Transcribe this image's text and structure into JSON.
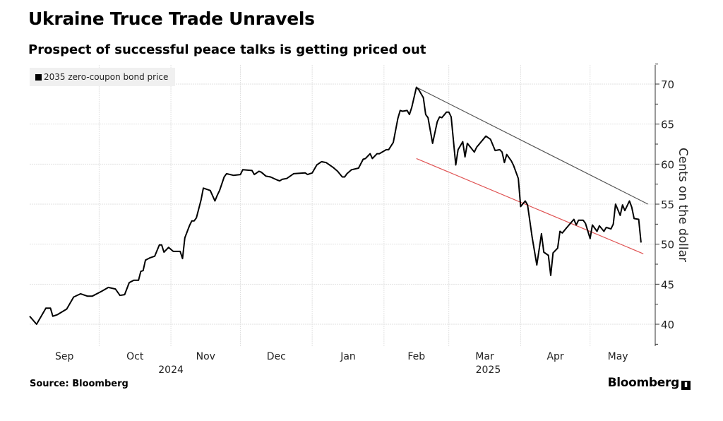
{
  "header": {
    "title": "Ukraine Truce Trade Unravels",
    "subtitle": "Prospect of successful peace talks is getting priced out"
  },
  "footer": {
    "source": "Source: Bloomberg",
    "brand": "Bloomberg"
  },
  "chart_data": {
    "type": "line",
    "title": "Ukraine Truce Trade Unravels",
    "subtitle": "Prospect of successful peace talks is getting priced out",
    "xlabel": "",
    "ylabel": "Cents on the dollar",
    "x_unit": "days since 2024-09-01",
    "xlim": [
      0,
      270
    ],
    "ylim": [
      37,
      72.5
    ],
    "yticks": [
      40,
      45,
      50,
      55,
      60,
      65,
      70
    ],
    "xticks": [
      {
        "label": "Sep",
        "day": 15
      },
      {
        "label": "Oct",
        "day": 45.5
      },
      {
        "label": "Nov",
        "day": 76
      },
      {
        "label": "Dec",
        "day": 106.5
      },
      {
        "label": "Jan",
        "day": 137.5
      },
      {
        "label": "Feb",
        "day": 167
      },
      {
        "label": "Mar",
        "day": 196.5
      },
      {
        "label": "Apr",
        "day": 227
      },
      {
        "label": "May",
        "day": 254
      }
    ],
    "month_boundaries": [
      30,
      61,
      91,
      122,
      153,
      181,
      212,
      242
    ],
    "year_labels": [
      {
        "label": "2024",
        "day": 61
      },
      {
        "label": "2025",
        "day": 198
      }
    ],
    "grid": true,
    "legend": {
      "position": "top-left",
      "entries": [
        "2035 zero-coupon bond price"
      ]
    },
    "series": [
      {
        "name": "2035 zero-coupon bond price",
        "color": "#000000",
        "points": [
          [
            0,
            41.0
          ],
          [
            3,
            40.0
          ],
          [
            7,
            42.0
          ],
          [
            9,
            42.0
          ],
          [
            10,
            41.0
          ],
          [
            12,
            41.2
          ],
          [
            16,
            41.9
          ],
          [
            19,
            43.4
          ],
          [
            22,
            43.8
          ],
          [
            25,
            43.5
          ],
          [
            27,
            43.5
          ],
          [
            31,
            44.1
          ],
          [
            34,
            44.6
          ],
          [
            37,
            44.4
          ],
          [
            39,
            43.6
          ],
          [
            41,
            43.7
          ],
          [
            43,
            45.2
          ],
          [
            45,
            45.5
          ],
          [
            47,
            45.5
          ],
          [
            48,
            46.6
          ],
          [
            49,
            46.7
          ],
          [
            50,
            48.0
          ],
          [
            52,
            48.3
          ],
          [
            54,
            48.5
          ],
          [
            56,
            49.9
          ],
          [
            57,
            49.9
          ],
          [
            58,
            49.0
          ],
          [
            60,
            49.6
          ],
          [
            62,
            49.1
          ],
          [
            65,
            49.1
          ],
          [
            66,
            48.2
          ],
          [
            67,
            50.8
          ],
          [
            69,
            52.3
          ],
          [
            70,
            52.9
          ],
          [
            71,
            52.9
          ],
          [
            72,
            53.3
          ],
          [
            74,
            55.5
          ],
          [
            75,
            57.0
          ],
          [
            78,
            56.7
          ],
          [
            80,
            55.4
          ],
          [
            81,
            56.1
          ],
          [
            82,
            56.7
          ],
          [
            84,
            58.4
          ],
          [
            85,
            58.8
          ],
          [
            88,
            58.6
          ],
          [
            91,
            58.7
          ],
          [
            92,
            59.3
          ],
          [
            96,
            59.2
          ],
          [
            97,
            58.7
          ],
          [
            99,
            59.1
          ],
          [
            100,
            59.0
          ],
          [
            102,
            58.5
          ],
          [
            104,
            58.4
          ],
          [
            107,
            58.0
          ],
          [
            108,
            57.9
          ],
          [
            109,
            58.1
          ],
          [
            111,
            58.2
          ],
          [
            114,
            58.8
          ],
          [
            119,
            58.9
          ],
          [
            120,
            58.7
          ],
          [
            122,
            58.9
          ],
          [
            124,
            59.9
          ],
          [
            126,
            60.3
          ],
          [
            128,
            60.2
          ],
          [
            131,
            59.6
          ],
          [
            133,
            59.1
          ],
          [
            135,
            58.4
          ],
          [
            136,
            58.4
          ],
          [
            137,
            58.8
          ],
          [
            139,
            59.3
          ],
          [
            142,
            59.5
          ],
          [
            144,
            60.6
          ],
          [
            145,
            60.7
          ],
          [
            147,
            61.3
          ],
          [
            148,
            60.7
          ],
          [
            150,
            61.3
          ],
          [
            151,
            61.3
          ],
          [
            154,
            61.8
          ],
          [
            155,
            61.8
          ],
          [
            157,
            62.7
          ],
          [
            159,
            65.7
          ],
          [
            160,
            66.7
          ],
          [
            161,
            66.6
          ],
          [
            163,
            66.7
          ],
          [
            164,
            66.2
          ],
          [
            165,
            67.1
          ],
          [
            167,
            69.6
          ],
          [
            168,
            69.3
          ],
          [
            170,
            68.3
          ],
          [
            171,
            66.2
          ],
          [
            172,
            65.8
          ],
          [
            174,
            62.6
          ],
          [
            176,
            65.3
          ],
          [
            177,
            65.9
          ],
          [
            178,
            65.8
          ],
          [
            180,
            66.5
          ],
          [
            181,
            66.5
          ],
          [
            182,
            65.9
          ],
          [
            184,
            59.9
          ],
          [
            185,
            61.8
          ],
          [
            187,
            62.8
          ],
          [
            188,
            60.9
          ],
          [
            189,
            62.6
          ],
          [
            192,
            61.5
          ],
          [
            193,
            62.1
          ],
          [
            197,
            63.5
          ],
          [
            199,
            63.1
          ],
          [
            201,
            61.7
          ],
          [
            203,
            61.8
          ],
          [
            204,
            61.5
          ],
          [
            205,
            60.2
          ],
          [
            206,
            61.2
          ],
          [
            208,
            60.4
          ],
          [
            209,
            59.8
          ],
          [
            211,
            58.2
          ],
          [
            212,
            54.7
          ],
          [
            214,
            55.4
          ],
          [
            215,
            54.9
          ],
          [
            217,
            50.8
          ],
          [
            219,
            47.4
          ],
          [
            221,
            51.3
          ],
          [
            222,
            49.0
          ],
          [
            224,
            48.6
          ],
          [
            225,
            46.1
          ],
          [
            226,
            48.9
          ],
          [
            228,
            49.5
          ],
          [
            229,
            51.6
          ],
          [
            230,
            51.4
          ],
          [
            232,
            52.1
          ],
          [
            235,
            53.1
          ],
          [
            236,
            52.4
          ],
          [
            237,
            53.0
          ],
          [
            239,
            53.0
          ],
          [
            240,
            52.6
          ],
          [
            242,
            50.7
          ],
          [
            243,
            52.4
          ],
          [
            245,
            51.6
          ],
          [
            246,
            52.3
          ],
          [
            248,
            51.6
          ],
          [
            249,
            52.1
          ],
          [
            251,
            51.9
          ],
          [
            252,
            52.5
          ],
          [
            253,
            55.0
          ],
          [
            255,
            53.6
          ],
          [
            256,
            54.9
          ],
          [
            257,
            54.2
          ],
          [
            259,
            55.4
          ],
          [
            260,
            54.6
          ],
          [
            261,
            53.2
          ],
          [
            263,
            53.1
          ],
          [
            264,
            50.2
          ]
        ]
      }
    ],
    "trendlines": [
      {
        "name": "upper-trendline",
        "color": "#555555",
        "from": [
          167,
          69.6
        ],
        "to": [
          267,
          55.0
        ]
      },
      {
        "name": "lower-trendline",
        "color": "#e05555",
        "from": [
          167,
          60.7
        ],
        "to": [
          265,
          48.8
        ]
      }
    ]
  }
}
